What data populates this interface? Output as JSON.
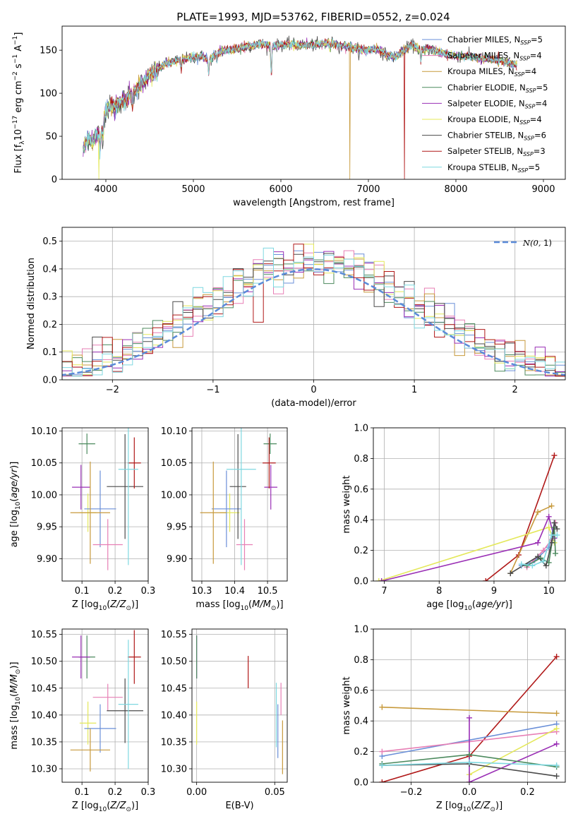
{
  "figure": {
    "title": "PLATE=1993, MJD=53762, FIBERID=0552, z=0.024"
  },
  "colors": {
    "chabrier_miles": "#6a8fd8",
    "salpeter_miles": "#e77fb5",
    "kroupa_miles": "#c79a3c",
    "chabrier_elodie": "#4c8a5e",
    "salpeter_elodie": "#9a2fb5",
    "kroupa_elodie": "#e4e85a",
    "chabrier_stelib": "#4a4a4a",
    "salpeter_stelib": "#b01818",
    "kroupa_stelib": "#7fd8e0",
    "gaussian": "#5b8bd9",
    "grid": "#b0b0b0"
  },
  "chart_data": [
    {
      "id": "spectrum",
      "type": "line",
      "xlabel": "wavelength [Angstrom, rest frame]",
      "ylabel": "Flux [f_λ 10^-17 erg cm^-2 s^-1 A^-1]",
      "xlim": [
        3500,
        9250
      ],
      "ylim": [
        0,
        178
      ],
      "xticks": [
        4000,
        5000,
        6000,
        7000,
        8000,
        9000
      ],
      "yticks": [
        0,
        50,
        100,
        150
      ],
      "grid": false,
      "legend_position": "upper-right",
      "legend": [
        {
          "label": "Chabrier MILES, N",
          "sub": "SSP",
          "tail": "=5",
          "color": "chabrier_miles"
        },
        {
          "label": "Salpeter MILES, N",
          "sub": "SSP",
          "tail": "=4",
          "color": "salpeter_miles"
        },
        {
          "label": "Kroupa MILES, N",
          "sub": "SSP",
          "tail": "=4",
          "color": "kroupa_miles"
        },
        {
          "label": "Chabrier ELODIE, N",
          "sub": "SSP",
          "tail": "=5",
          "color": "chabrier_elodie"
        },
        {
          "label": "Salpeter ELODIE, N",
          "sub": "SSP",
          "tail": "=4",
          "color": "salpeter_elodie"
        },
        {
          "label": "Kroupa ELODIE, N",
          "sub": "SSP",
          "tail": "=4",
          "color": "kroupa_elodie"
        },
        {
          "label": "Chabrier STELIB, N",
          "sub": "SSP",
          "tail": "=6",
          "color": "chabrier_stelib"
        },
        {
          "label": "Salpeter STELIB, N",
          "sub": "SSP",
          "tail": "=3",
          "color": "salpeter_stelib"
        },
        {
          "label": "Kroupa STELIB, N",
          "sub": "SSP",
          "tail": "=5",
          "color": "kroupa_stelib"
        }
      ],
      "continuum": [
        [
          3740,
          35
        ],
        [
          3800,
          48
        ],
        [
          3850,
          45
        ],
        [
          3900,
          52
        ],
        [
          3950,
          55
        ],
        [
          4000,
          80
        ],
        [
          4100,
          88
        ],
        [
          4200,
          92
        ],
        [
          4300,
          100
        ],
        [
          4400,
          110
        ],
        [
          4500,
          120
        ],
        [
          4600,
          128
        ],
        [
          4700,
          135
        ],
        [
          4800,
          138
        ],
        [
          4900,
          140
        ],
        [
          5000,
          142
        ],
        [
          5100,
          143
        ],
        [
          5200,
          140
        ],
        [
          5300,
          148
        ],
        [
          5400,
          150
        ],
        [
          5500,
          152
        ],
        [
          5600,
          154
        ],
        [
          5700,
          156
        ],
        [
          5800,
          157
        ],
        [
          5900,
          155
        ],
        [
          6000,
          156
        ],
        [
          6100,
          157
        ],
        [
          6200,
          156
        ],
        [
          6300,
          156
        ],
        [
          6400,
          156
        ],
        [
          6500,
          158
        ],
        [
          6600,
          158
        ],
        [
          6700,
          155
        ],
        [
          6800,
          154
        ],
        [
          6900,
          150
        ],
        [
          7000,
          150
        ],
        [
          7100,
          152
        ],
        [
          7200,
          145
        ],
        [
          7300,
          142
        ],
        [
          7400,
          150
        ],
        [
          7500,
          156
        ],
        [
          7600,
          150
        ],
        [
          7700,
          152
        ],
        [
          7800,
          148
        ],
        [
          7900,
          145
        ],
        [
          8000,
          143
        ],
        [
          8100,
          143
        ],
        [
          8200,
          142
        ],
        [
          8300,
          140
        ],
        [
          8400,
          140
        ],
        [
          8500,
          138
        ],
        [
          8600,
          135
        ],
        [
          8700,
          133
        ]
      ],
      "absorption_features": [
        [
          3934,
          20
        ],
        [
          3969,
          15
        ],
        [
          4102,
          10
        ],
        [
          4227,
          10
        ],
        [
          4304,
          15
        ],
        [
          4861,
          10
        ],
        [
          5175,
          20
        ],
        [
          5270,
          8
        ],
        [
          5890,
          35
        ],
        [
          6563,
          6
        ],
        [
          7600,
          12
        ]
      ],
      "dropouts": [
        {
          "series": "kroupa_elodie",
          "x": 3920
        },
        {
          "series": "kroupa_miles",
          "x": 6790
        },
        {
          "series": "salpeter_stelib",
          "x": 7410
        }
      ]
    },
    {
      "id": "residuals",
      "type": "histogram",
      "xlabel": "(data-model)/error",
      "ylabel": "Normed distribution",
      "xlim": [
        -2.5,
        2.5
      ],
      "ylim": [
        0,
        0.55
      ],
      "xticks": [
        -2,
        -1,
        0,
        1,
        2
      ],
      "yticks": [
        0.0,
        0.1,
        0.2,
        0.3,
        0.4,
        0.5
      ],
      "grid": true,
      "legend_position": "upper-right",
      "gaussian_label": "N(0, 1)",
      "bin_width": 0.1,
      "series": [
        "chabrier_miles",
        "salpeter_miles",
        "kroupa_miles",
        "chabrier_elodie",
        "salpeter_elodie",
        "kroupa_elodie",
        "chabrier_stelib",
        "salpeter_stelib",
        "kroupa_stelib"
      ]
    },
    {
      "id": "age_vs_Z",
      "type": "errorbar",
      "xlabel": "Z [log10(Z/Z⊙)]",
      "ylabel": "age [log10(age/yr)]",
      "xlim": [
        0.04,
        0.3
      ],
      "ylim": [
        9.865,
        10.105
      ],
      "xticks": [
        0.1,
        0.2,
        0.3
      ],
      "yticks": [
        9.9,
        9.95,
        10.0,
        10.05,
        10.1
      ],
      "grid": true,
      "points": [
        {
          "series": "chabrier_elodie",
          "x": 0.115,
          "y": 10.08,
          "xerr": 0.025,
          "yerr": 0.016
        },
        {
          "series": "salpeter_elodie",
          "x": 0.097,
          "y": 10.012,
          "xerr": 0.027,
          "yerr": 0.035
        },
        {
          "series": "kroupa_elodie",
          "x": 0.118,
          "y": 9.972,
          "xerr": 0.025,
          "yerr": 0.03
        },
        {
          "series": "chabrier_miles",
          "x": 0.155,
          "y": 9.978,
          "xerr": 0.048,
          "yerr": 0.06
        },
        {
          "series": "salpeter_miles",
          "x": 0.178,
          "y": 9.922,
          "xerr": 0.045,
          "yerr": 0.04
        },
        {
          "series": "kroupa_miles",
          "x": 0.125,
          "y": 9.972,
          "xerr": 0.06,
          "yerr": 0.08
        },
        {
          "series": "chabrier_stelib",
          "x": 0.23,
          "y": 10.013,
          "xerr": 0.055,
          "yerr": 0.082
        },
        {
          "series": "salpeter_stelib",
          "x": 0.258,
          "y": 10.05,
          "xerr": 0.02,
          "yerr": 0.04
        },
        {
          "series": "kroupa_stelib",
          "x": 0.24,
          "y": 10.04,
          "xerr": 0.03,
          "yerr": 0.15
        }
      ]
    },
    {
      "id": "age_vs_mass",
      "type": "errorbar",
      "xlabel": "mass [log10(M/M⊙)]",
      "ylabel": "",
      "xlim": [
        10.27,
        10.56
      ],
      "ylim": [
        9.865,
        10.105
      ],
      "xticks": [
        10.3,
        10.4,
        10.5
      ],
      "yticks": [
        9.9,
        9.95,
        10.0,
        10.05,
        10.1
      ],
      "grid": true,
      "points": [
        {
          "series": "chabrier_elodie",
          "x": 10.508,
          "y": 10.08,
          "xerr": 0.02,
          "yerr": 0.016
        },
        {
          "series": "salpeter_elodie",
          "x": 10.51,
          "y": 10.012,
          "xerr": 0.02,
          "yerr": 0.035
        },
        {
          "series": "kroupa_elodie",
          "x": 10.385,
          "y": 9.972,
          "xerr": 0.03,
          "yerr": 0.03
        },
        {
          "series": "chabrier_miles",
          "x": 10.375,
          "y": 9.978,
          "xerr": 0.045,
          "yerr": 0.06
        },
        {
          "series": "salpeter_miles",
          "x": 10.43,
          "y": 9.922,
          "xerr": 0.025,
          "yerr": 0.04
        },
        {
          "series": "kroupa_miles",
          "x": 10.335,
          "y": 9.972,
          "xerr": 0.04,
          "yerr": 0.08
        },
        {
          "series": "chabrier_stelib",
          "x": 10.41,
          "y": 10.013,
          "xerr": 0.025,
          "yerr": 0.082
        },
        {
          "series": "salpeter_stelib",
          "x": 10.505,
          "y": 10.05,
          "xerr": 0.02,
          "yerr": 0.04
        },
        {
          "series": "kroupa_stelib",
          "x": 10.42,
          "y": 10.04,
          "xerr": 0.045,
          "yerr": 0.15
        }
      ]
    },
    {
      "id": "weight_vs_age",
      "type": "line",
      "xlabel": "age [log10(age/yr)]",
      "ylabel": "mass weight",
      "xlim": [
        6.8,
        10.3
      ],
      "ylim": [
        0,
        1.0
      ],
      "xticks": [
        7,
        8,
        9,
        10
      ],
      "yticks": [
        0.0,
        0.2,
        0.4,
        0.6,
        0.8,
        1.0
      ],
      "grid": true,
      "series": [
        {
          "series": "salpeter_stelib",
          "x": [
            8.85,
            9.45,
            10.1
          ],
          "y": [
            0.0,
            0.17,
            0.82
          ]
        },
        {
          "series": "kroupa_miles",
          "x": [
            9.3,
            9.8,
            10.05
          ],
          "y": [
            0.05,
            0.45,
            0.49
          ]
        },
        {
          "series": "kroupa_elodie",
          "x": [
            6.9,
            10.0,
            10.1
          ],
          "y": [
            0.0,
            0.35,
            0.25
          ]
        },
        {
          "series": "salpeter_elodie",
          "x": [
            6.95,
            9.8,
            10.0,
            10.1
          ],
          "y": [
            0.0,
            0.25,
            0.42,
            0.28
          ]
        },
        {
          "series": "chabrier_miles",
          "x": [
            9.5,
            9.7,
            10.0,
            10.1
          ],
          "y": [
            0.1,
            0.12,
            0.22,
            0.38
          ]
        },
        {
          "series": "salpeter_miles",
          "x": [
            9.6,
            9.9,
            10.05,
            10.12
          ],
          "y": [
            0.09,
            0.2,
            0.27,
            0.38
          ]
        },
        {
          "series": "chabrier_elodie",
          "x": [
            9.6,
            9.85,
            10.0,
            10.1,
            10.12
          ],
          "y": [
            0.1,
            0.15,
            0.12,
            0.35,
            0.18
          ]
        },
        {
          "series": "chabrier_stelib",
          "x": [
            9.3,
            9.8,
            9.95,
            10.05,
            10.1,
            10.15
          ],
          "y": [
            0.05,
            0.16,
            0.1,
            0.25,
            0.38,
            0.34
          ]
        },
        {
          "series": "kroupa_stelib",
          "x": [
            9.5,
            9.7,
            9.9,
            10.05,
            10.15
          ],
          "y": [
            0.11,
            0.1,
            0.13,
            0.3,
            0.3
          ]
        }
      ]
    },
    {
      "id": "mass_vs_Z",
      "type": "errorbar",
      "xlabel": "Z [log10(Z/Z⊙)]",
      "ylabel": "mass [log10(M/M⊙)]",
      "xlim": [
        0.04,
        0.3
      ],
      "ylim": [
        10.275,
        10.56
      ],
      "xticks": [
        0.1,
        0.2,
        0.3
      ],
      "yticks": [
        10.3,
        10.35,
        10.4,
        10.45,
        10.5,
        10.55
      ],
      "grid": true,
      "points": [
        {
          "series": "chabrier_elodie",
          "x": 0.115,
          "y": 10.508,
          "xerr": 0.025,
          "yerr": 0.04
        },
        {
          "series": "salpeter_elodie",
          "x": 0.097,
          "y": 10.508,
          "xerr": 0.027,
          "yerr": 0.04
        },
        {
          "series": "kroupa_elodie",
          "x": 0.118,
          "y": 10.385,
          "xerr": 0.025,
          "yerr": 0.04
        },
        {
          "series": "chabrier_miles",
          "x": 0.155,
          "y": 10.375,
          "xerr": 0.048,
          "yerr": 0.045
        },
        {
          "series": "salpeter_miles",
          "x": 0.178,
          "y": 10.433,
          "xerr": 0.045,
          "yerr": 0.025
        },
        {
          "series": "kroupa_miles",
          "x": 0.125,
          "y": 10.335,
          "xerr": 0.06,
          "yerr": 0.04
        },
        {
          "series": "chabrier_stelib",
          "x": 0.23,
          "y": 10.408,
          "xerr": 0.055,
          "yerr": 0.06
        },
        {
          "series": "salpeter_stelib",
          "x": 0.258,
          "y": 10.508,
          "xerr": 0.02,
          "yerr": 0.05
        },
        {
          "series": "kroupa_stelib",
          "x": 0.24,
          "y": 10.42,
          "xerr": 0.03,
          "yerr": 0.12
        }
      ]
    },
    {
      "id": "mass_vs_EBV",
      "type": "errorbar",
      "xlabel": "E(B-V)",
      "ylabel": "",
      "xlim": [
        -0.003,
        0.058
      ],
      "ylim": [
        10.275,
        10.56
      ],
      "xticks": [
        0.0,
        0.05
      ],
      "yticks": [
        10.3,
        10.35,
        10.4,
        10.45,
        10.5,
        10.55
      ],
      "grid": true,
      "points": [
        {
          "series": "salpeter_elodie",
          "x": 0.0,
          "y": 10.508,
          "xerr": 0,
          "yerr": 0.04
        },
        {
          "series": "chabrier_elodie",
          "x": 0.0,
          "y": 10.508,
          "xerr": 0,
          "yerr": 0.04
        },
        {
          "series": "kroupa_elodie",
          "x": 0.0,
          "y": 10.385,
          "xerr": 0,
          "yerr": 0.04
        },
        {
          "series": "salpeter_stelib",
          "x": 0.033,
          "y": 10.48,
          "xerr": 0,
          "yerr": 0.03
        },
        {
          "series": "kroupa_stelib",
          "x": 0.051,
          "y": 10.4,
          "xerr": 0,
          "yerr": 0.06
        },
        {
          "series": "chabrier_miles",
          "x": 0.052,
          "y": 10.37,
          "xerr": 0,
          "yerr": 0.05
        },
        {
          "series": "salpeter_miles",
          "x": 0.054,
          "y": 10.43,
          "xerr": 0,
          "yerr": 0.03
        },
        {
          "series": "kroupa_miles",
          "x": 0.055,
          "y": 10.34,
          "xerr": 0,
          "yerr": 0.05
        }
      ]
    },
    {
      "id": "weight_vs_Z",
      "type": "line",
      "xlabel": "Z [log10(Z/Z⊙)]",
      "ylabel": "mass weight",
      "xlim": [
        -0.33,
        0.33
      ],
      "ylim": [
        0,
        1.0
      ],
      "xticks": [
        -0.2,
        0.0,
        0.2
      ],
      "yticks": [
        0.0,
        0.2,
        0.4,
        0.6,
        0.8,
        1.0
      ],
      "grid": true,
      "series": [
        {
          "series": "salpeter_stelib",
          "x": [
            -0.3,
            0.0,
            0.3
          ],
          "y": [
            0.0,
            0.17,
            0.82
          ]
        },
        {
          "series": "kroupa_miles",
          "x": [
            -0.3,
            0.3
          ],
          "y": [
            0.49,
            0.45
          ]
        },
        {
          "series": "chabrier_miles",
          "x": [
            -0.3,
            0.3
          ],
          "y": [
            0.17,
            0.38
          ]
        },
        {
          "series": "salpeter_miles",
          "x": [
            -0.3,
            0.3
          ],
          "y": [
            0.2,
            0.33
          ]
        },
        {
          "series": "kroupa_elodie",
          "x": [
            0.0,
            0.0,
            0.3
          ],
          "y": [
            0.0,
            0.05,
            0.35
          ]
        },
        {
          "series": "salpeter_elodie",
          "x": [
            0.0,
            0.0,
            0.3
          ],
          "y": [
            0.42,
            0.0,
            0.25
          ]
        },
        {
          "series": "chabrier_elodie",
          "x": [
            -0.3,
            0.0,
            0.3
          ],
          "y": [
            0.12,
            0.18,
            0.1
          ]
        },
        {
          "series": "chabrier_stelib",
          "x": [
            -0.3,
            0.0,
            0.3
          ],
          "y": [
            0.11,
            0.12,
            0.04
          ]
        },
        {
          "series": "kroupa_stelib",
          "x": [
            -0.3,
            0.0,
            0.3
          ],
          "y": [
            0.11,
            0.13,
            0.11
          ]
        }
      ]
    }
  ]
}
